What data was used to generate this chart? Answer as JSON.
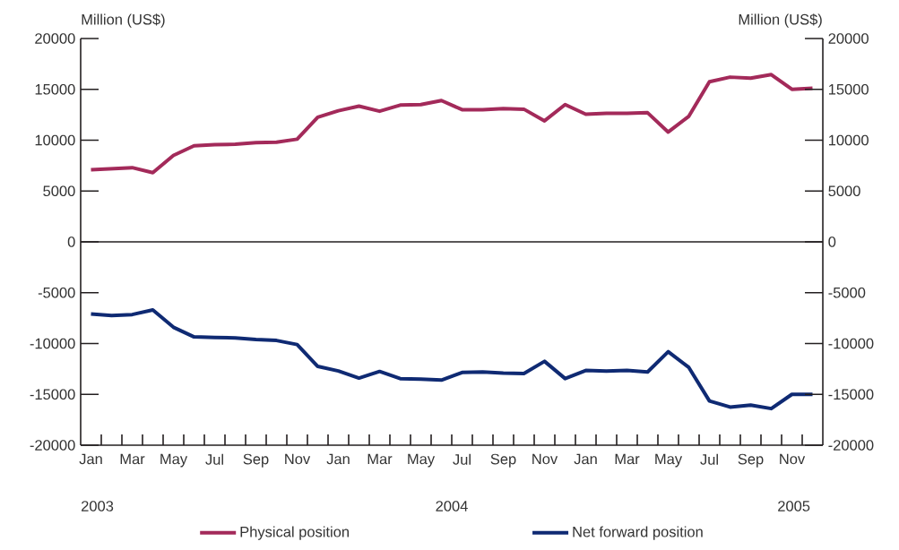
{
  "chart_data": {
    "type": "line",
    "ylabel": "Million (US$)",
    "y2label": "Million (US$)",
    "categories": [
      "Jan",
      null,
      "Mar",
      null,
      "May",
      null,
      "Jul",
      null,
      "Sep",
      null,
      "Nov",
      null,
      "Jan",
      null,
      "Mar",
      null,
      "May",
      null,
      "Jul",
      null,
      "Sep",
      null,
      "Nov",
      null,
      "Jan",
      null,
      "Mar",
      null,
      "May",
      null,
      "Jul",
      null,
      "Sep",
      null,
      "Nov",
      null
    ],
    "series": [
      {
        "name": "Physical position",
        "color": "#a32a5a",
        "values": [
          7100,
          7200,
          7300,
          6800,
          8500,
          9450,
          9550,
          9600,
          9750,
          9800,
          10100,
          12250,
          12900,
          13350,
          12850,
          13450,
          13500,
          13900,
          13000,
          13000,
          13100,
          13050,
          11900,
          13500,
          12550,
          12650,
          12650,
          12700,
          10800,
          12350,
          15750,
          16200,
          16100,
          16450,
          15000,
          15100
        ]
      },
      {
        "name": "Net forward position",
        "color": "#0f2a73",
        "values": [
          -7100,
          -7250,
          -7150,
          -6700,
          -8400,
          -9350,
          -9400,
          -9450,
          -9600,
          -9700,
          -10100,
          -12250,
          -12700,
          -13400,
          -12750,
          -13450,
          -13500,
          -13600,
          -12850,
          -12800,
          -12900,
          -12950,
          -11750,
          -13450,
          -12650,
          -12700,
          -12650,
          -12800,
          -10800,
          -12350,
          -15650,
          -16250,
          -16050,
          -16400,
          -15000,
          -15000
        ]
      }
    ],
    "ylim": [
      -20000,
      20000
    ],
    "yticks": [
      -20000,
      -15000,
      -10000,
      -5000,
      0,
      5000,
      10000,
      15000,
      20000
    ],
    "y2lim": [
      -20000,
      20000
    ],
    "y2ticks": [
      -20000,
      -15000,
      -10000,
      -5000,
      0,
      5000,
      10000,
      15000,
      20000
    ],
    "ref_lines": [
      {
        "axis": "y",
        "value": 0
      }
    ],
    "annotations": [
      "2003",
      "2004",
      "2005"
    ],
    "legend": "bottom",
    "grid": false,
    "marker": "none",
    "line_style": "solid"
  }
}
